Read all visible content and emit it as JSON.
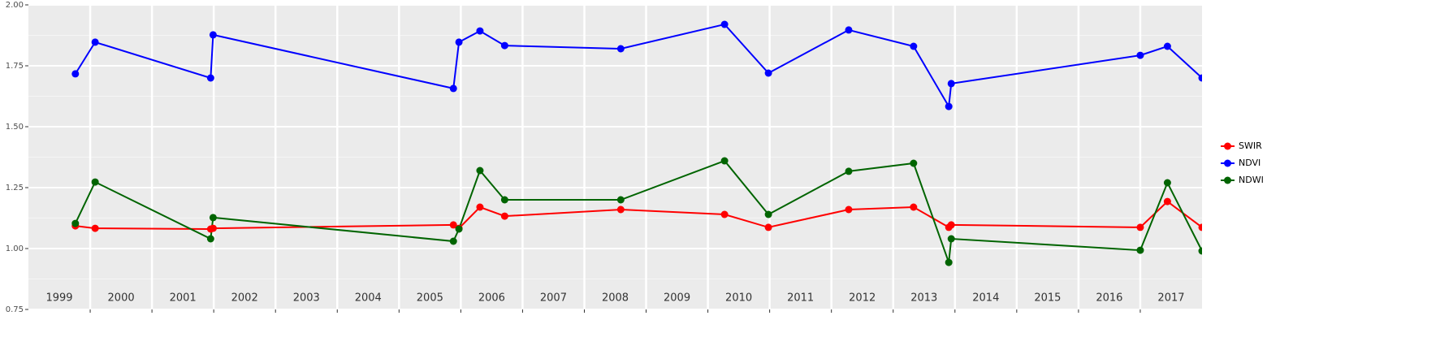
{
  "chart_data": {
    "type": "line",
    "x": [
      1999.76,
      2000.08,
      2001.95,
      2001.99,
      2005.88,
      2005.97,
      2006.31,
      2006.71,
      2008.59,
      2010.27,
      2010.98,
      2012.28,
      2013.33,
      2013.9,
      2013.94,
      2017.0,
      2017.44,
      2018.0
    ],
    "series": [
      {
        "name": "SWIR",
        "color": "#ff0000",
        "values": [
          1.093,
          1.083,
          1.08,
          1.083,
          1.097,
          1.083,
          1.17,
          1.133,
          1.16,
          1.14,
          1.087,
          1.16,
          1.17,
          1.087,
          1.097,
          1.087,
          1.193,
          1.087
        ]
      },
      {
        "name": "NDVI",
        "color": "#0000ff",
        "values": [
          1.717,
          1.847,
          1.7,
          1.877,
          1.657,
          1.847,
          1.893,
          1.833,
          1.82,
          1.92,
          1.72,
          1.897,
          1.83,
          1.583,
          1.677,
          1.793,
          1.83,
          1.7
        ]
      },
      {
        "name": "NDWI",
        "color": "#006400",
        "values": [
          1.103,
          1.273,
          1.04,
          1.127,
          1.03,
          1.08,
          1.32,
          1.2,
          1.2,
          1.36,
          1.14,
          1.317,
          1.35,
          0.943,
          1.04,
          0.993,
          1.27,
          0.99
        ]
      }
    ],
    "xlim": [
      1999,
      2018
    ],
    "xticks": [
      2000,
      2001,
      2002,
      2003,
      2004,
      2005,
      2006,
      2007,
      2008,
      2009,
      2010,
      2011,
      2012,
      2013,
      2014,
      2015,
      2016,
      2017
    ],
    "year_labels": [
      {
        "value": 1999.5,
        "label": "1999"
      },
      {
        "value": 2000.5,
        "label": "2000"
      },
      {
        "value": 2001.5,
        "label": "2001"
      },
      {
        "value": 2002.5,
        "label": "2002"
      },
      {
        "value": 2003.5,
        "label": "2003"
      },
      {
        "value": 2004.5,
        "label": "2004"
      },
      {
        "value": 2005.5,
        "label": "2005"
      },
      {
        "value": 2006.5,
        "label": "2006"
      },
      {
        "value": 2007.5,
        "label": "2007"
      },
      {
        "value": 2008.5,
        "label": "2008"
      },
      {
        "value": 2009.5,
        "label": "2009"
      },
      {
        "value": 2010.5,
        "label": "2010"
      },
      {
        "value": 2011.5,
        "label": "2011"
      },
      {
        "value": 2012.5,
        "label": "2012"
      },
      {
        "value": 2013.5,
        "label": "2013"
      },
      {
        "value": 2014.5,
        "label": "2014"
      },
      {
        "value": 2015.5,
        "label": "2015"
      },
      {
        "value": 2016.5,
        "label": "2016"
      },
      {
        "value": 2017.5,
        "label": "2017"
      }
    ],
    "ylim": [
      0.75,
      2.0
    ],
    "yticks": [
      0.75,
      {
        "value": 1,
        "label": "1.00"
      },
      1.25,
      {
        "value": 1.5,
        "label": "1.50"
      },
      1.75,
      {
        "value": 2,
        "label": "2.00"
      }
    ],
    "grid": true,
    "legend": "right"
  }
}
